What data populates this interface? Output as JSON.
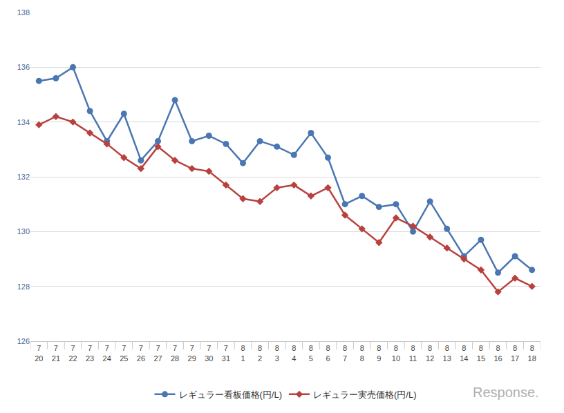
{
  "chart_data": {
    "type": "line",
    "categories": [
      "7\n20",
      "7\n21",
      "7\n22",
      "7\n23",
      "7\n24",
      "7\n25",
      "7\n26",
      "7\n27",
      "7\n28",
      "7\n29",
      "7\n30",
      "7\n31",
      "8\n1",
      "8\n2",
      "8\n3",
      "8\n4",
      "8\n5",
      "8\n6",
      "8\n7",
      "8\n8",
      "8\n9",
      "8\n10",
      "8\n11",
      "8\n12",
      "8\n13",
      "8\n14",
      "8\n15",
      "8\n16",
      "8\n17",
      "8\n18"
    ],
    "series": [
      {
        "name": "レギュラー看板価格(円/L)",
        "color": "#4a76b2",
        "marker": "circle",
        "values": [
          135.5,
          135.6,
          136.0,
          134.4,
          133.3,
          134.3,
          132.6,
          133.3,
          134.8,
          133.3,
          133.5,
          133.2,
          132.5,
          133.3,
          133.1,
          132.8,
          133.6,
          132.7,
          131.0,
          131.3,
          130.9,
          131.0,
          130.0,
          131.1,
          130.1,
          129.1,
          129.7,
          128.5,
          129.1,
          128.6
        ]
      },
      {
        "name": "レギュラー実売価格(円/L)",
        "color": "#b8413e",
        "marker": "diamond",
        "values": [
          133.9,
          134.2,
          134.0,
          133.6,
          133.2,
          132.7,
          132.3,
          133.1,
          132.6,
          132.3,
          132.2,
          131.7,
          131.2,
          131.1,
          131.6,
          131.7,
          131.3,
          131.6,
          130.6,
          130.1,
          129.6,
          130.5,
          130.2,
          129.8,
          129.4,
          129.0,
          128.6,
          127.8,
          128.3,
          128.0
        ]
      }
    ],
    "ylim": [
      126,
      138
    ],
    "yticks": [
      126,
      128,
      130,
      132,
      134,
      136,
      138
    ],
    "grid": true,
    "legend": "bottom",
    "annotations": [
      {
        "text": "Response."
      }
    ]
  }
}
